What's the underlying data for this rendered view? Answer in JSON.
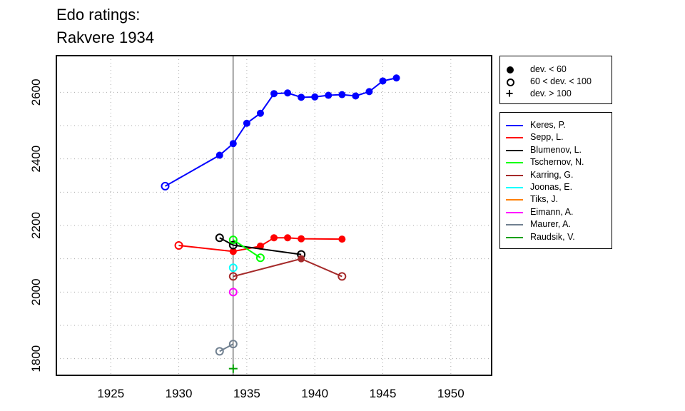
{
  "title_lines": [
    "Edo ratings:",
    "Rakvere 1934"
  ],
  "status_legend": [
    {
      "symbol": "filled-circle",
      "label": "dev. < 60"
    },
    {
      "symbol": "open-circle",
      "label": "60 < dev. < 100"
    },
    {
      "symbol": "plus",
      "label": "dev. > 100"
    }
  ],
  "chart_data": {
    "type": "line",
    "title": "Edo ratings: Rakvere 1934",
    "xlabel": "",
    "ylabel": "",
    "xlim": [
      1921,
      1953
    ],
    "ylim": [
      1750,
      2710
    ],
    "x_ticks": [
      1925,
      1930,
      1935,
      1940,
      1945,
      1950
    ],
    "y_ticks": [
      1800,
      2000,
      2200,
      2400,
      2600
    ],
    "grid": true,
    "reference_line_x": 1934,
    "legend_position": "right",
    "series": [
      {
        "name": "Keres, P.",
        "color": "#0000ff",
        "points": [
          {
            "x": 1929,
            "y": 2318,
            "s": "open"
          },
          {
            "x": 1933,
            "y": 2411,
            "s": "filled"
          },
          {
            "x": 1934,
            "y": 2446,
            "s": "filled"
          },
          {
            "x": 1935,
            "y": 2507,
            "s": "filled"
          },
          {
            "x": 1936,
            "y": 2537,
            "s": "filled"
          },
          {
            "x": 1937,
            "y": 2596,
            "s": "filled"
          },
          {
            "x": 1938,
            "y": 2598,
            "s": "filled"
          },
          {
            "x": 1939,
            "y": 2585,
            "s": "filled"
          },
          {
            "x": 1940,
            "y": 2586,
            "s": "filled"
          },
          {
            "x": 1941,
            "y": 2591,
            "s": "filled"
          },
          {
            "x": 1942,
            "y": 2593,
            "s": "filled"
          },
          {
            "x": 1943,
            "y": 2589,
            "s": "filled"
          },
          {
            "x": 1944,
            "y": 2602,
            "s": "filled"
          },
          {
            "x": 1945,
            "y": 2634,
            "s": "filled"
          },
          {
            "x": 1946,
            "y": 2643,
            "s": "filled"
          }
        ]
      },
      {
        "name": "Sepp, L.",
        "color": "#ff0000",
        "points": [
          {
            "x": 1930,
            "y": 2140,
            "s": "open"
          },
          {
            "x": 1934,
            "y": 2122,
            "s": "filled"
          },
          {
            "x": 1936,
            "y": 2138,
            "s": "filled"
          },
          {
            "x": 1937,
            "y": 2163,
            "s": "filled"
          },
          {
            "x": 1938,
            "y": 2163,
            "s": "filled"
          },
          {
            "x": 1939,
            "y": 2160,
            "s": "filled"
          },
          {
            "x": 1942,
            "y": 2159,
            "s": "filled"
          }
        ]
      },
      {
        "name": "Blumenov, L.",
        "color": "#000000",
        "points": [
          {
            "x": 1933,
            "y": 2163,
            "s": "open"
          },
          {
            "x": 1934,
            "y": 2141,
            "s": "open"
          },
          {
            "x": 1939,
            "y": 2113,
            "s": "open"
          }
        ]
      },
      {
        "name": "Tschernov, N.",
        "color": "#00ff00",
        "points": [
          {
            "x": 1934,
            "y": 2157,
            "s": "open"
          },
          {
            "x": 1936,
            "y": 2103,
            "s": "open"
          }
        ]
      },
      {
        "name": "Karring, G.",
        "color": "#a52a2a",
        "points": [
          {
            "x": 1934,
            "y": 2047,
            "s": "open"
          },
          {
            "x": 1939,
            "y": 2100,
            "s": "filled"
          },
          {
            "x": 1942,
            "y": 2047,
            "s": "open"
          }
        ]
      },
      {
        "name": "Joonas, E.",
        "color": "#00ffff",
        "points": [
          {
            "x": 1934,
            "y": 2073,
            "s": "open"
          }
        ]
      },
      {
        "name": "Tiks, J.",
        "color": "#ff7f00",
        "points": []
      },
      {
        "name": "Eimann, A.",
        "color": "#ff00ff",
        "points": [
          {
            "x": 1934,
            "y": 2000,
            "s": "open"
          }
        ]
      },
      {
        "name": "Maurer, A.",
        "color": "#708090",
        "points": [
          {
            "x": 1933,
            "y": 1822,
            "s": "open"
          },
          {
            "x": 1934,
            "y": 1844,
            "s": "open"
          }
        ]
      },
      {
        "name": "Raudsik, V.",
        "color": "#00a000",
        "points": [
          {
            "x": 1934,
            "y": 1770,
            "s": "plus"
          }
        ]
      }
    ]
  }
}
